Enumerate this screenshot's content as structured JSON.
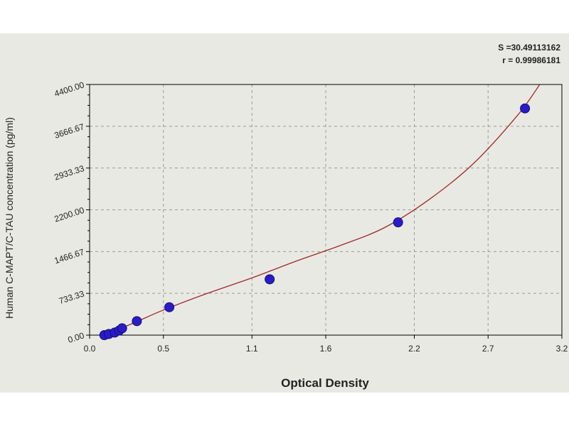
{
  "chart_data": {
    "type": "scatter",
    "title": "",
    "xlabel": "Optical Density",
    "ylabel": "Human C-MAPT/C-TAU concentration (pg/ml)",
    "xlim": [
      0.0,
      3.2
    ],
    "ylim": [
      0,
      4400
    ],
    "x_ticks": [
      0.0,
      0.5,
      1.1,
      1.6,
      2.2,
      2.7,
      3.2
    ],
    "x_tick_labels": [
      "0.0",
      "0.5",
      "1.1",
      "1.6",
      "2.2",
      "2.7",
      "3.2"
    ],
    "y_ticks": [
      0,
      733.33,
      1466.67,
      2200,
      2933.33,
      3666.67,
      4400
    ],
    "y_tick_labels": [
      "0.00",
      "733.33",
      "1466.67",
      "2200.00",
      "2933.33",
      "3666.67",
      "4400.00"
    ],
    "grid": true,
    "points": {
      "x": [
        0.1,
        0.13,
        0.17,
        0.2,
        0.22,
        0.32,
        0.54,
        1.22,
        2.09,
        2.95
      ],
      "y": [
        0,
        20,
        45,
        80,
        120,
        245,
        490,
        980,
        1980,
        3980
      ]
    },
    "fit_curve": {
      "x": [
        0.1,
        0.3,
        0.5,
        0.8,
        1.1,
        1.4,
        1.7,
        2.0,
        2.3,
        2.6,
        2.9,
        3.05
      ],
      "y": [
        0,
        215,
        440,
        735,
        1005,
        1300,
        1575,
        1890,
        2380,
        3010,
        3860,
        4400
      ]
    },
    "point_color": "#2a1cc8",
    "curve_color": "#a0282a",
    "stats": {
      "s": "S =30.49113162",
      "r": "r = 0.99986181"
    }
  }
}
